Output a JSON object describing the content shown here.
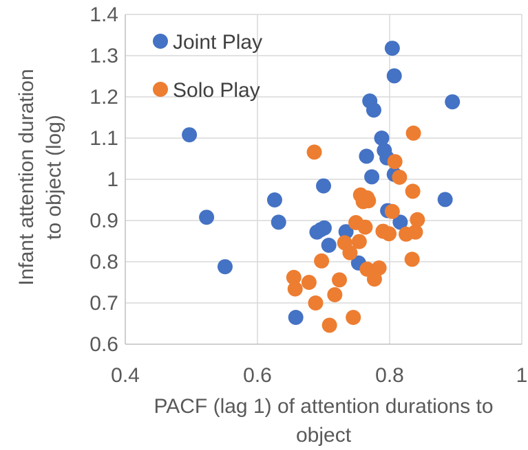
{
  "chart_data": {
    "type": "scatter",
    "xlabel": "PACF (lag 1) of attention durations to object",
    "ylabel": "Infant attention duration to object (log)",
    "xlim": [
      0.4,
      1.0
    ],
    "ylim": [
      0.6,
      1.4
    ],
    "x_ticks": [
      "0.4",
      "0.6",
      "0.8",
      "1"
    ],
    "y_ticks": [
      "0.6",
      "0.7",
      "0.8",
      "0.9",
      "1",
      "1.1",
      "1.2",
      "1.3",
      "1.4"
    ],
    "grid": true,
    "legend_position": "top-left",
    "series": [
      {
        "name": "Joint Play",
        "color": "#4472C4",
        "points": [
          [
            0.497,
            1.108
          ],
          [
            0.523,
            0.908
          ],
          [
            0.551,
            0.788
          ],
          [
            0.626,
            0.95
          ],
          [
            0.632,
            0.896
          ],
          [
            0.658,
            0.665
          ],
          [
            0.69,
            0.872
          ],
          [
            0.696,
            0.878
          ],
          [
            0.7,
            0.984
          ],
          [
            0.701,
            0.882
          ],
          [
            0.708,
            0.84
          ],
          [
            0.734,
            0.873
          ],
          [
            0.753,
            0.797
          ],
          [
            0.765,
            1.056
          ],
          [
            0.77,
            1.19
          ],
          [
            0.773,
            1.006
          ],
          [
            0.776,
            1.168
          ],
          [
            0.788,
            1.1
          ],
          [
            0.792,
            1.07
          ],
          [
            0.796,
            1.052
          ],
          [
            0.797,
            0.924
          ],
          [
            0.804,
            1.318
          ],
          [
            0.807,
            1.251
          ],
          [
            0.807,
            1.012
          ],
          [
            0.816,
            0.896
          ],
          [
            0.884,
            0.951
          ],
          [
            0.895,
            1.188
          ]
        ]
      },
      {
        "name": "Solo Play",
        "color": "#ED7D31",
        "points": [
          [
            0.655,
            0.762
          ],
          [
            0.657,
            0.734
          ],
          [
            0.678,
            0.75
          ],
          [
            0.686,
            1.066
          ],
          [
            0.688,
            0.7
          ],
          [
            0.697,
            0.802
          ],
          [
            0.709,
            0.646
          ],
          [
            0.717,
            0.72
          ],
          [
            0.724,
            0.756
          ],
          [
            0.732,
            0.846
          ],
          [
            0.74,
            0.822
          ],
          [
            0.745,
            0.665
          ],
          [
            0.749,
            0.895
          ],
          [
            0.754,
            0.849
          ],
          [
            0.756,
            0.962
          ],
          [
            0.76,
            0.946
          ],
          [
            0.763,
            0.884
          ],
          [
            0.766,
            0.955
          ],
          [
            0.766,
            0.782
          ],
          [
            0.768,
            0.948
          ],
          [
            0.777,
            0.758
          ],
          [
            0.778,
            0.778
          ],
          [
            0.784,
            0.785
          ],
          [
            0.79,
            0.874
          ],
          [
            0.799,
            0.868
          ],
          [
            0.804,
            0.922
          ],
          [
            0.808,
            1.043
          ],
          [
            0.815,
            1.005
          ],
          [
            0.825,
            0.867
          ],
          [
            0.834,
            0.806
          ],
          [
            0.835,
            0.971
          ],
          [
            0.836,
            1.112
          ],
          [
            0.839,
            0.872
          ],
          [
            0.842,
            0.902
          ]
        ]
      }
    ]
  }
}
